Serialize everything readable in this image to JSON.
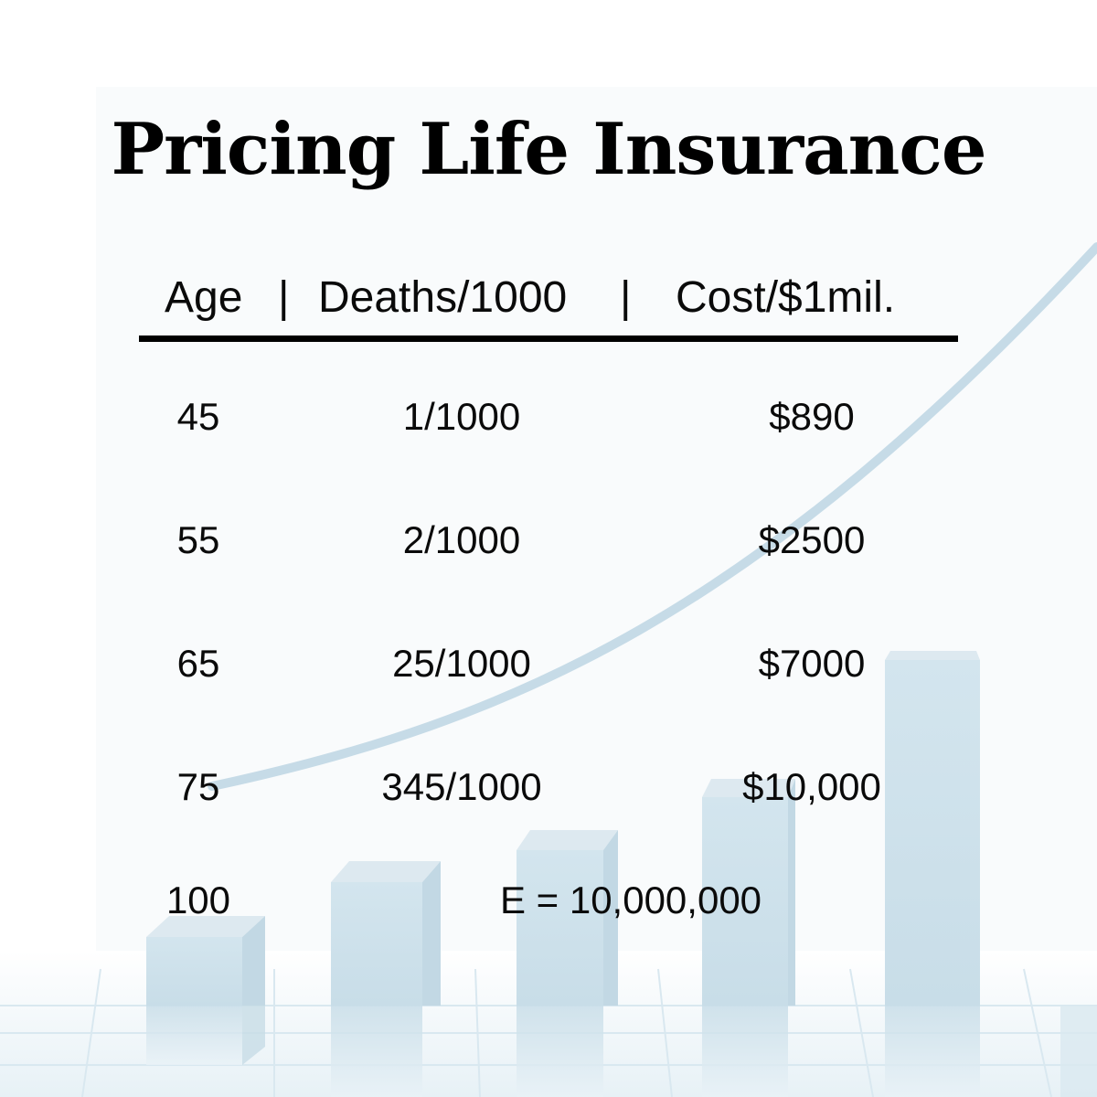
{
  "title": "Pricing Life Insurance",
  "table": {
    "headers": {
      "age": "Age",
      "sep1": "|",
      "deaths": "Deaths/1000",
      "sep2": "|",
      "cost": "Cost/$1mil."
    },
    "rows": [
      {
        "age": "45",
        "deaths": "1/1000",
        "cost": "$890"
      },
      {
        "age": "55",
        "deaths": "2/1000",
        "cost": "$2500"
      },
      {
        "age": "65",
        "deaths": "25/1000",
        "cost": "$7000"
      },
      {
        "age": "75",
        "deaths": "345/1000",
        "cost": "$10,000"
      }
    ],
    "final_row": {
      "age": "100",
      "value": "E = 10,000,000"
    }
  },
  "colors": {
    "text": "#000000",
    "bar_fill": "#cfe2ec",
    "bar_top": "#dce9f1",
    "curve": "#c5dbe7",
    "background": "#ffffff"
  }
}
